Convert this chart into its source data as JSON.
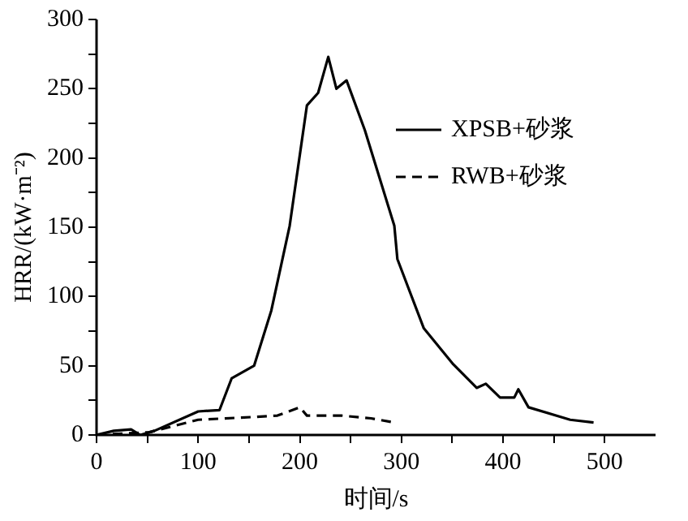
{
  "chart_data": {
    "type": "line",
    "xlabel": "时间/s",
    "ylabel": "HRR/(kW·m⁻²)",
    "xlim": [
      0,
      550
    ],
    "xticks": [
      0,
      {
        "value": 50,
        "label": null
      },
      100,
      {
        "value": 150,
        "label": null
      },
      200,
      {
        "value": 250,
        "label": null
      },
      300,
      {
        "value": 350,
        "label": null
      },
      400,
      {
        "value": 450,
        "label": null
      },
      500
    ],
    "ylim": [
      0,
      300
    ],
    "yticks": [
      0,
      {
        "value": 25,
        "label": null
      },
      50,
      {
        "value": 75,
        "label": null
      },
      100,
      {
        "value": 125,
        "label": null
      },
      150,
      {
        "value": 175,
        "label": null
      },
      200,
      {
        "value": 225,
        "label": null
      },
      250,
      {
        "value": 275,
        "label": null
      },
      300
    ],
    "legend": "top right",
    "grid": false,
    "marker": "none",
    "series": [
      {
        "name": "XPSB+砂浆",
        "color": "#000000",
        "line_style": "solid",
        "x": [
          0,
          17,
          34,
          43,
          57,
          100,
          121,
          133,
          155,
          172,
          190,
          207,
          218,
          228,
          236,
          246,
          264,
          293,
          296,
          322,
          351,
          374,
          383,
          397,
          411,
          415,
          425,
          466,
          489
        ],
        "values": [
          0,
          3,
          4,
          0,
          3,
          17,
          18,
          41,
          50,
          90,
          151,
          238,
          247,
          273,
          250,
          256,
          220,
          151,
          127,
          77,
          51,
          34,
          37,
          27,
          27,
          33,
          20,
          11,
          9
        ]
      },
      {
        "name": "RWB+砂浆",
        "color": "#000000",
        "line_style": "dashed",
        "x": [
          0,
          52,
          100,
          155,
          178,
          200,
          207,
          241,
          270,
          293
        ],
        "values": [
          0,
          2,
          11,
          13,
          14,
          20,
          14,
          14,
          12,
          9
        ]
      }
    ]
  }
}
